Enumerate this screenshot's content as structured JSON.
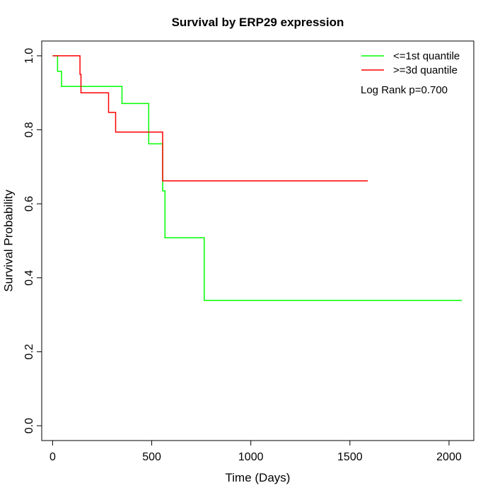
{
  "chart_data": {
    "type": "line",
    "title": "Survival by ERP29 expression",
    "xlabel": "Time (Days)",
    "ylabel": "Survival Probability",
    "xlim": [
      -55,
      2125
    ],
    "ylim": [
      -0.04,
      1.04
    ],
    "x_ticks": [
      0,
      500,
      1000,
      1500,
      2000
    ],
    "y_ticks": [
      0.0,
      0.2,
      0.4,
      0.6,
      0.8,
      1.0
    ],
    "x_tick_labels": [
      "0",
      "500",
      "1000",
      "1500",
      "2000"
    ],
    "y_tick_labels": [
      "0.0",
      "0.2",
      "0.4",
      "0.6",
      "0.8",
      "1.0"
    ],
    "grid": false,
    "legend_position": "top-right",
    "step": true,
    "series": [
      {
        "name": "<=1st quantile",
        "color": "#00ff00",
        "points": [
          [
            0,
            1.0
          ],
          [
            25,
            0.958
          ],
          [
            45,
            0.917
          ],
          [
            350,
            0.871
          ],
          [
            485,
            0.762
          ],
          [
            555,
            0.635
          ],
          [
            567,
            0.508
          ],
          [
            765,
            0.339
          ],
          [
            2065,
            0.339
          ]
        ]
      },
      {
        "name": ">=3d quantile",
        "color": "#ff0000",
        "points": [
          [
            0,
            1.0
          ],
          [
            138,
            0.95
          ],
          [
            143,
            0.9
          ],
          [
            282,
            0.847
          ],
          [
            318,
            0.794
          ],
          [
            555,
            0.662
          ],
          [
            1590,
            0.662
          ]
        ]
      }
    ],
    "annotation": "Log Rank p=0.700"
  }
}
